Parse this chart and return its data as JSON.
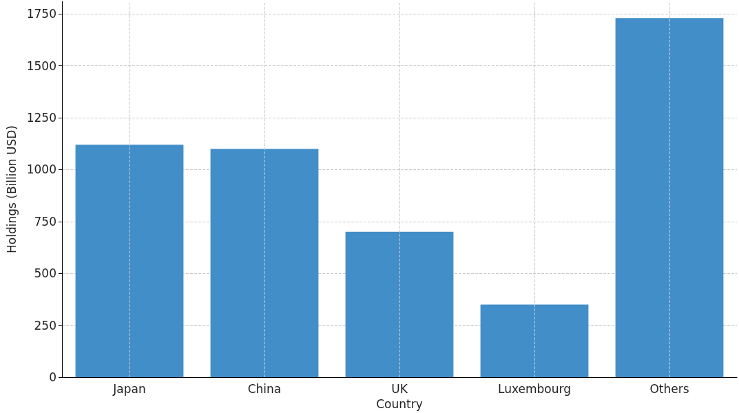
{
  "chart_data": {
    "type": "bar",
    "xlabel": "Country",
    "ylabel": "Holdings (Billion USD)",
    "categories": [
      "Japan",
      "China",
      "UK",
      "Luxembourg",
      "Others"
    ],
    "values": [
      1120,
      1100,
      700,
      350,
      1730
    ],
    "color": "#428ec9",
    "ylim": [
      0,
      1810
    ],
    "yticks": [
      0,
      250,
      500,
      750,
      1000,
      1250,
      1500,
      1750
    ],
    "grid": true
  }
}
